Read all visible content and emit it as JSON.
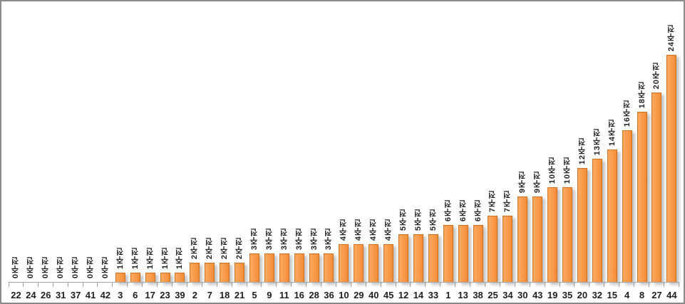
{
  "chart_data": {
    "type": "bar",
    "title": "",
    "xlabel": "",
    "ylabel": "",
    "legend": null,
    "grid": false,
    "ylim": [
      0,
      30
    ],
    "categories": [
      "22",
      "24",
      "26",
      "31",
      "37",
      "41",
      "42",
      "3",
      "6",
      "17",
      "23",
      "39",
      "2",
      "7",
      "18",
      "21",
      "5",
      "9",
      "11",
      "16",
      "28",
      "36",
      "10",
      "29",
      "40",
      "45",
      "12",
      "14",
      "33",
      "1",
      "13",
      "38",
      "25",
      "34",
      "30",
      "43",
      "19",
      "35",
      "20",
      "32",
      "15",
      "4",
      "8",
      "27",
      "44"
    ],
    "values": [
      0,
      0,
      0,
      0,
      0,
      0,
      0,
      1,
      1,
      1,
      1,
      1,
      2,
      2,
      2,
      2,
      3,
      3,
      3,
      3,
      3,
      3,
      4,
      4,
      4,
      4,
      5,
      5,
      5,
      6,
      6,
      6,
      7,
      7,
      9,
      9,
      10,
      10,
      12,
      13,
      14,
      16,
      18,
      20,
      24
    ],
    "bar_labels": [
      "0주전",
      "0주전",
      "0주전",
      "0주전",
      "0주전",
      "0주전",
      "0주전",
      "1주전",
      "1주전",
      "1주전",
      "1주전",
      "1주전",
      "2주전",
      "2주전",
      "2주전",
      "2주전",
      "3주전",
      "3주전",
      "3주전",
      "3주전",
      "3주전",
      "3주전",
      "4주전",
      "4주전",
      "4주전",
      "4주전",
      "5주전",
      "5주전",
      "5주전",
      "6주전",
      "6주전",
      "6주전",
      "7주전",
      "7주전",
      "9주전",
      "9주전",
      "10주전",
      "10주전",
      "12주전",
      "13주전",
      "14주전",
      "16주전",
      "18주전",
      "20주전",
      "24주전"
    ],
    "bar_label_suffix": "주전",
    "colors": {
      "bar_fill": "#F79646",
      "bar_fill_light": "#FBAA60",
      "bar_border": "#CF7021",
      "bar_shadow": "rgba(125,125,125,0.45)",
      "axis": "#A6A6A6",
      "text": "#262626",
      "background": "#FFFFFF",
      "frame_border": "#8C8C8C"
    }
  }
}
